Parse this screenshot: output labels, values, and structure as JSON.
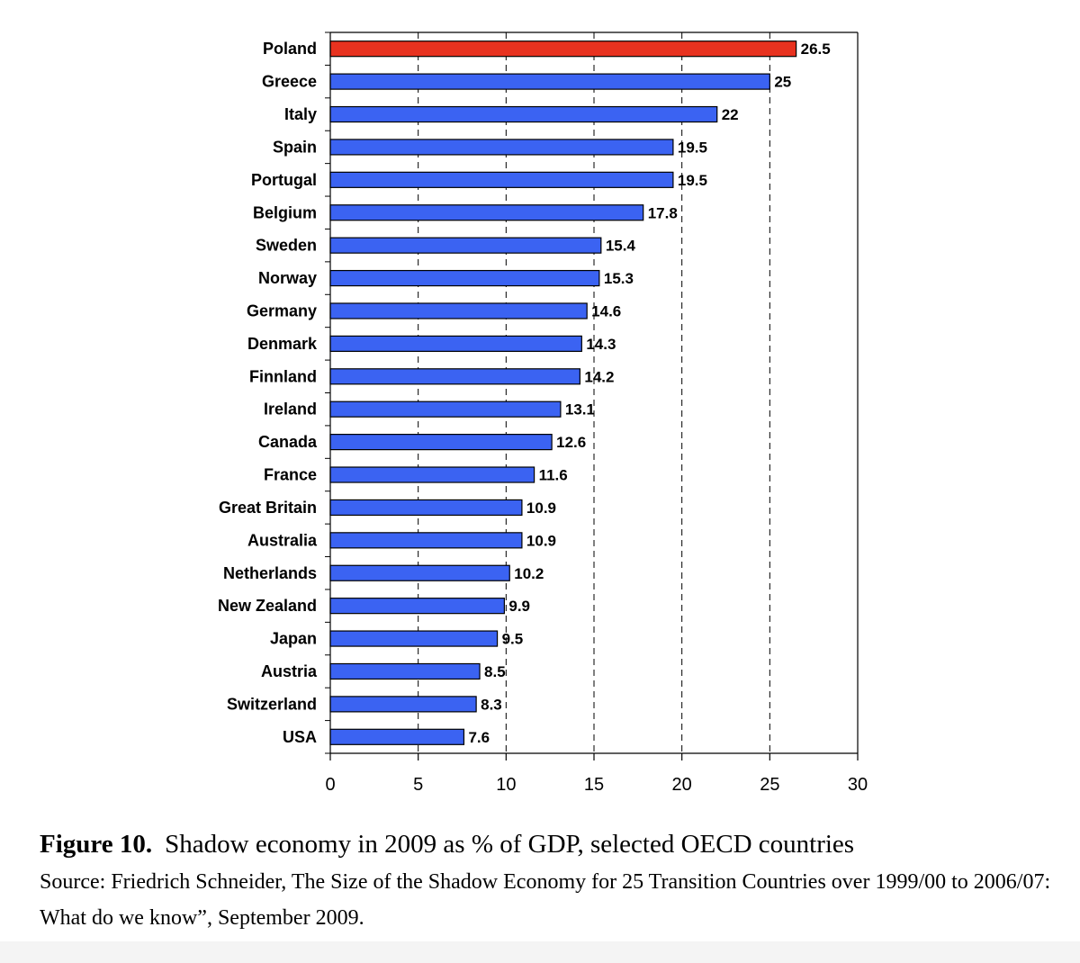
{
  "chart_data": {
    "type": "bar",
    "orientation": "horizontal",
    "categories": [
      "Poland",
      "Greece",
      "Italy",
      "Spain",
      "Portugal",
      "Belgium",
      "Sweden",
      "Norway",
      "Germany",
      "Denmark",
      "Finnland",
      "Ireland",
      "Canada",
      "France",
      "Great Britain",
      "Australia",
      "Netherlands",
      "New Zealand",
      "Japan",
      "Austria",
      "Switzerland",
      "USA"
    ],
    "values": [
      26.5,
      25,
      22,
      19.5,
      19.5,
      17.8,
      15.4,
      15.3,
      14.6,
      14.3,
      14.2,
      13.1,
      12.6,
      11.6,
      10.9,
      10.9,
      10.2,
      9.9,
      9.5,
      8.5,
      8.3,
      7.6
    ],
    "value_labels": [
      "26.5",
      "25",
      "22",
      "19.5",
      "19.5",
      "17.8",
      "15.4",
      "15.3",
      "14.6",
      "14.3",
      "14.2",
      "13.1",
      "12.6",
      "11.6",
      "10.9",
      "10.9",
      "10.2",
      "9.9",
      "9.5",
      "8.5",
      "8.3",
      "7.6"
    ],
    "highlight_category": "Poland",
    "colors": {
      "bar": "#3b63f2",
      "highlight": "#e8321f",
      "outline": "#000000"
    },
    "xlim": [
      0,
      30
    ],
    "xticks": [
      0,
      5,
      10,
      15,
      20,
      25,
      30
    ],
    "xtick_labels": [
      "0",
      "5",
      "10",
      "15",
      "20",
      "25",
      "30"
    ],
    "grid": "vertical dashed",
    "legend": "none"
  },
  "caption": {
    "figure_number": "Figure 10.",
    "title": "Shadow economy in 2009 as % of GDP, selected OECD countries",
    "source": "Source: Friedrich Schneider, The Size of the Shadow Economy for 25 Transition Countries over 1999/00 to 2006/07: What do we know”, September 2009."
  }
}
